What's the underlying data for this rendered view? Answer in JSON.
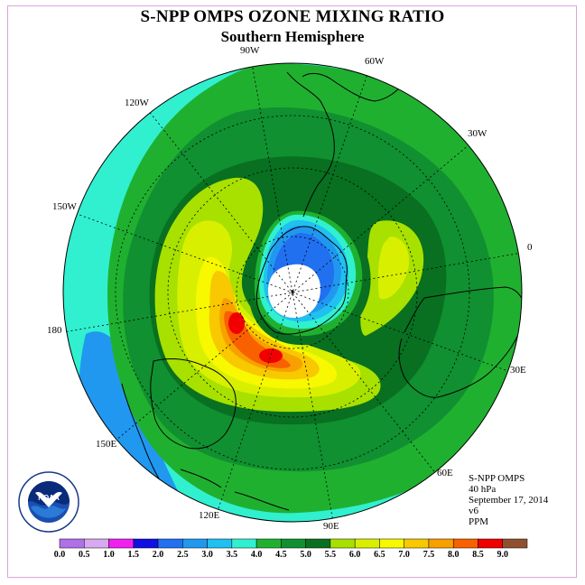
{
  "header": {
    "title": "S-NPP OMPS OZONE MIXING RATIO",
    "subtitle": "Southern Hemisphere"
  },
  "longitude_labels": [
    "90W",
    "60W",
    "120W",
    "30W",
    "150W",
    "0",
    "180",
    "30E",
    "150E",
    "60E",
    "120E",
    "90E"
  ],
  "info": {
    "instrument": "S-NPP OMPS",
    "pressure": "40 hPa",
    "date": "September 17, 2014",
    "version": "v6",
    "units": "PPM"
  },
  "logo": {
    "text": "NOAA",
    "ring_text": "NATIONAL OCEANIC AND ATMOSPHERIC ADMINISTRATION",
    "icon": "noaa-logo-icon"
  },
  "colorbar": {
    "labels": [
      "0.0",
      "0.5",
      "1.0",
      "1.5",
      "2.0",
      "2.5",
      "3.0",
      "3.5",
      "4.0",
      "4.5",
      "5.0",
      "5.5",
      "6.0",
      "6.5",
      "7.0",
      "7.5",
      "8.0",
      "8.5",
      "9.0"
    ],
    "colors": [
      "#b070e8",
      "#d8a8f0",
      "#f020f0",
      "#1010e0",
      "#2070f0",
      "#2098f0",
      "#20c0f0",
      "#30f0d0",
      "#20b030",
      "#109030",
      "#087020",
      "#a8e000",
      "#d8f000",
      "#f8f800",
      "#f8c800",
      "#f8a000",
      "#f86000",
      "#f00000",
      "#905030"
    ]
  },
  "map": {
    "polar_stereographic": true,
    "hemisphere": "south",
    "missing_data_color": "#ffffff",
    "field_colors": {
      "3.5-4.0": "#30f0d0",
      "4.0-4.5": "#20b030",
      "4.5-5.0": "#109030",
      "5.0-5.5": "#087020"
    }
  }
}
